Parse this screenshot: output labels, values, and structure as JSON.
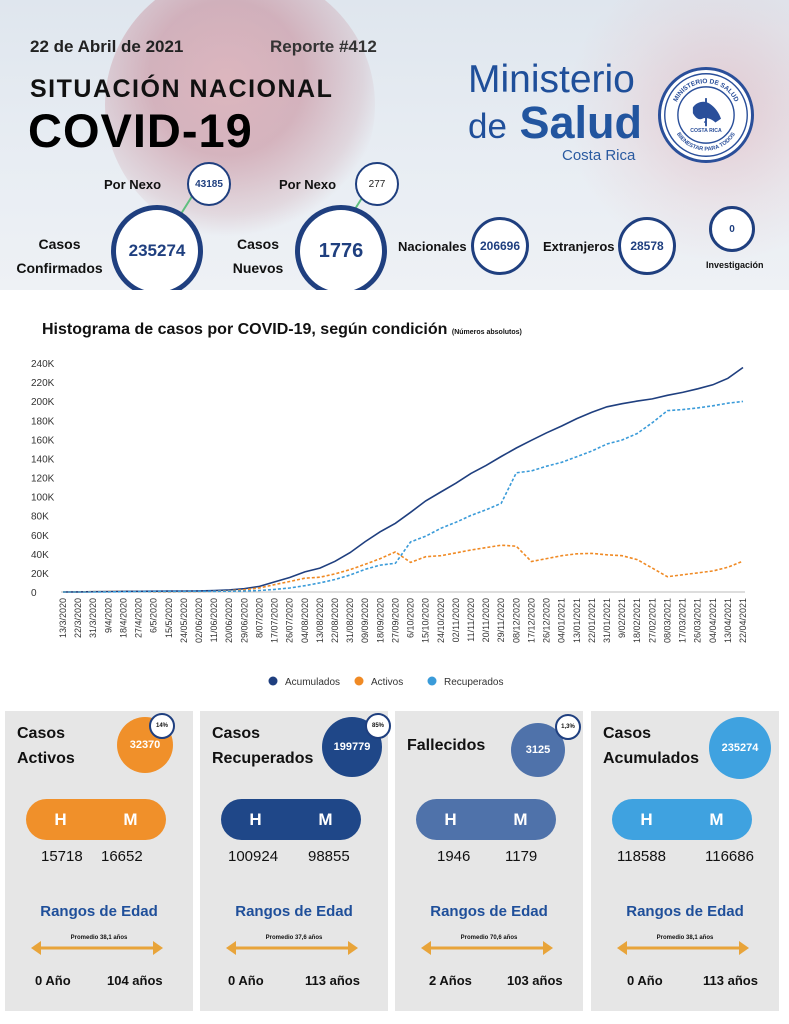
{
  "header": {
    "date": "22 de Abril de 2021",
    "report": "Reporte #412",
    "title_line1": "SITUACIÓN NACIONAL",
    "title_line2": "COVID-19",
    "ministry_line1": "Ministerio",
    "ministry_de": "de",
    "ministry_salud": "Salud",
    "ministry_country": "Costa Rica",
    "seal_top": "MINISTERIO DE SALUD",
    "seal_mid": "COSTA RICA",
    "seal_bottom": "BIENESTAR PARA TODOS"
  },
  "stats": {
    "confirmed_label_1": "Casos",
    "confirmed_label_2": "Confirmados",
    "confirmed_value": "235274",
    "nexo_label": "Por Nexo",
    "confirmed_nexo": "43185",
    "new_label_1": "Casos",
    "new_label_2": "Nuevos",
    "new_value": "1776",
    "new_nexo": "277",
    "nacionales_label": "Nacionales",
    "nacionales_value": "206696",
    "extranjeros_label": "Extranjeros",
    "extranjeros_value": "28578",
    "investigacion_label": "Investigación",
    "investigacion_value": "0"
  },
  "chart_title": "Histograma de casos por COVID-19, según condición",
  "chart_subtitle": "(Números absolutos)",
  "chart_data": {
    "type": "line",
    "title": "Histograma de casos por COVID-19, según condición",
    "subtitle": "(Números absolutos)",
    "y_ticks": [
      "0",
      "20K",
      "40K",
      "60K",
      "80K",
      "100K",
      "120K",
      "140K",
      "160K",
      "180K",
      "200K",
      "220K",
      "240K"
    ],
    "ylim": [
      0,
      240000
    ],
    "x_labels": [
      "13/3/2020",
      "22/3/2020",
      "31/3/2020",
      "9/4/2020",
      "18/4/2020",
      "27/4/2020",
      "6/5/2020",
      "15/5/2020",
      "24/05/2020",
      "02/06/2020",
      "11/06/2020",
      "20/06/2020",
      "29/06/2020",
      "8/07/2020",
      "17/07/2020",
      "26/07/2020",
      "04/08/2020",
      "13/08/2020",
      "22/08/2020",
      "31/08/2020",
      "09/09/2020",
      "18/09/2020",
      "27/09/2020",
      "6/10/2020",
      "15/10/2020",
      "24/10/2020",
      "02/11/2020",
      "11/11/2020",
      "20/11/2020",
      "29/11/2020",
      "08/12/2020",
      "17/12/2020",
      "26/12/2020",
      "04/01/2021",
      "13/01/2021",
      "22/01/2021",
      "31/01/2021",
      "9/02/2021",
      "18/02/2021",
      "27/02/2021",
      "08/03/2021",
      "17/03/2021",
      "26/03/2021",
      "04/04/2021",
      "13/04/2021",
      "22/04/2021"
    ],
    "legend_position": "bottom",
    "series": [
      {
        "name": "Acumulados",
        "color": "#1f3f7f",
        "dashed": false,
        "values": [
          26,
          134,
          347,
          558,
          687,
          719,
          804,
          903,
          1000,
          1194,
          1561,
          2213,
          3459,
          5836,
          10551,
          15229,
          21070,
          25057,
          32134,
          41287,
          52828,
          63181,
          72049,
          83497,
          95514,
          104789,
          114016,
          124264,
          132654,
          141998,
          150961,
          158954,
          166887,
          173952,
          181765,
          188311,
          194073,
          197294,
          200079,
          202426,
          206151,
          209142,
          212963,
          217103,
          223917,
          235274
        ]
      },
      {
        "name": "Activos",
        "color": "#f08a24",
        "dashed": true,
        "values": [
          26,
          120,
          310,
          430,
          420,
          350,
          250,
          230,
          330,
          500,
          820,
          1350,
          2400,
          4300,
          7800,
          11000,
          14500,
          15500,
          19000,
          23500,
          29000,
          35000,
          42000,
          31000,
          37000,
          38000,
          41000,
          44000,
          46500,
          49000,
          48000,
          32000,
          35000,
          38000,
          40000,
          40500,
          39000,
          38000,
          34000,
          25000,
          16000,
          18000,
          20000,
          22000,
          26000,
          32370
        ]
      },
      {
        "name": "Recuperados",
        "color": "#3a9bd9",
        "dashed": true,
        "values": [
          0,
          14,
          37,
          128,
          267,
          369,
          554,
          673,
          670,
          694,
          741,
          863,
          1059,
          1536,
          2751,
          4229,
          6570,
          9557,
          13134,
          17787,
          23828,
          28181,
          30049,
          52497,
          58514,
          66789,
          73016,
          80264,
          86154,
          92998,
          124961,
          126954,
          131887,
          135952,
          141765,
          147811,
          155073,
          159294,
          166079,
          177426,
          190151,
          191142,
          192963,
          195103,
          197917,
          199779
        ]
      }
    ]
  },
  "cards": [
    {
      "title_1": "Casos",
      "title_2": "Activos",
      "value": "32370",
      "pct": "14%",
      "color": "#f0902a",
      "h_label": "H",
      "m_label": "M",
      "h_value": "15718",
      "m_value": "16652",
      "age_title": "Rangos de Edad",
      "avg": "Promedio 38,1 años",
      "min_age": "0 Año",
      "max_age": "104 años"
    },
    {
      "title_1": "Casos",
      "title_2": "Recuperados",
      "value": "199779",
      "pct": "85%",
      "color": "#1f4788",
      "h_label": "H",
      "m_label": "M",
      "h_value": "100924",
      "m_value": "98855",
      "age_title": "Rangos de Edad",
      "avg": "Promedio 37,6 años",
      "min_age": "0 Año",
      "max_age": "113 años"
    },
    {
      "title_1": "Fallecidos",
      "title_2": "",
      "value": "3125",
      "pct": "1,3%",
      "color": "#4f72aa",
      "h_label": "H",
      "m_label": "M",
      "h_value": "1946",
      "m_value": "1179",
      "age_title": "Rangos de Edad",
      "avg": "Promedio 70,6 años",
      "min_age": "2 Años",
      "max_age": "103 años"
    },
    {
      "title_1": "Casos",
      "title_2": "Acumulados",
      "value": "235274",
      "pct": "",
      "color": "#3fa2e0",
      "h_label": "H",
      "m_label": "M",
      "h_value": "118588",
      "m_value": "116686",
      "age_title": "Rangos de Edad",
      "avg": "Promedio 38,1 años",
      "min_age": "0 Año",
      "max_age": "113 años"
    }
  ],
  "colors": {
    "navy": "#1f3f7f",
    "orange": "#f08a24",
    "lightblue": "#3a9bd9",
    "arrow": "#e8a43a",
    "connector": "#5fbf7f",
    "age_title": "#1f4f9a"
  }
}
